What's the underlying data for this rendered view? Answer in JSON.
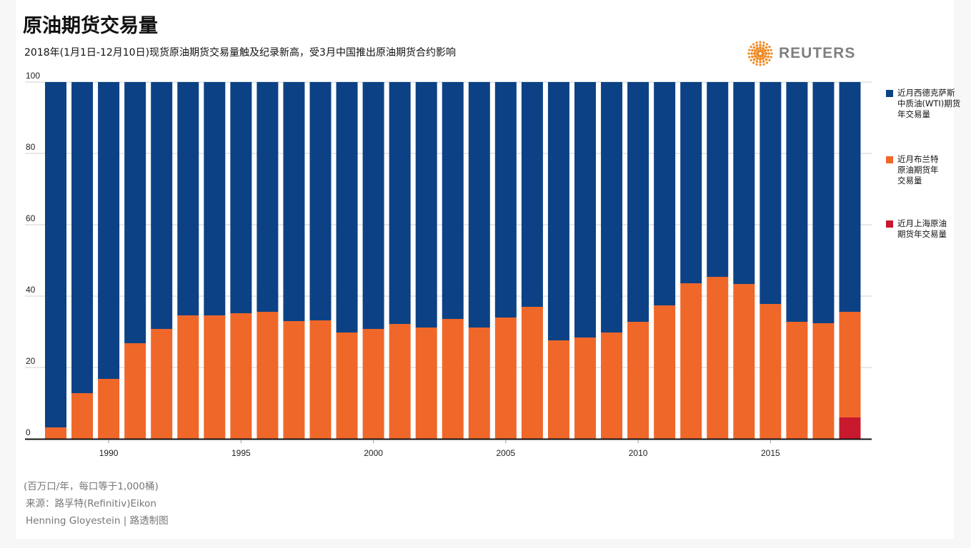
{
  "title": "原油期货交易量",
  "subtitle": "2018年(1月1日-12月10日)现货原油期货交易量触及纪录新高，受3月中国推出原油期货合约影响",
  "logo": {
    "text": "REUTERS",
    "color": "#f08a24"
  },
  "footer": {
    "unit": "(百万口/年，每口等于1,000桶)",
    "source": "来源：路孚特(Refinitiv)Eikon",
    "credit": "Henning Gloyestein | 路透制图"
  },
  "chart_data": {
    "type": "bar",
    "stacked": true,
    "title": "原油期货交易量",
    "xlabel": "",
    "ylabel": "",
    "ylim": [
      0,
      100
    ],
    "yticks": [
      0,
      20,
      40,
      60,
      80,
      100
    ],
    "xticks": [
      1990,
      1995,
      2000,
      2005,
      2010,
      2015
    ],
    "grid": true,
    "legend_position": "right",
    "categories": [
      1988,
      1989,
      1990,
      1991,
      1992,
      1993,
      1994,
      1995,
      1996,
      1997,
      1998,
      1999,
      2000,
      2001,
      2002,
      2003,
      2004,
      2005,
      2006,
      2007,
      2008,
      2009,
      2010,
      2011,
      2012,
      2013,
      2014,
      2015,
      2016,
      2017,
      2018
    ],
    "series": [
      {
        "name": "近月上海原油期货年交易量",
        "color": "#c8192e",
        "values": [
          0,
          0,
          0,
          0,
          0,
          0,
          0,
          0,
          0,
          0,
          0,
          0,
          0,
          0,
          0,
          0,
          0,
          0,
          0,
          0,
          0,
          0,
          0,
          0,
          0,
          0,
          0,
          0,
          0,
          0,
          6
        ]
      },
      {
        "name": "近月布兰特原油期货年交易量",
        "color": "#f0672a",
        "values": [
          3.2,
          12.8,
          16.8,
          26.8,
          30.8,
          34.6,
          34.6,
          35.2,
          35.6,
          33,
          33.2,
          29.8,
          30.8,
          32.2,
          31.2,
          33.6,
          31.2,
          34,
          37,
          27.6,
          28.4,
          29.8,
          32.8,
          37.4,
          43.6,
          45.4,
          43.4,
          37.8,
          32.8,
          32.4,
          29.6
        ]
      },
      {
        "name": "近月西德克萨斯中质油(WTI)期货年交易量",
        "color": "#0c4285",
        "values": [
          96.8,
          87.2,
          83.2,
          73.2,
          69.2,
          65.4,
          65.4,
          64.8,
          64.4,
          67,
          66.8,
          70.2,
          69.2,
          67.8,
          68.8,
          66.4,
          68.8,
          66,
          63,
          72.4,
          71.6,
          70.2,
          67.2,
          62.6,
          56.4,
          54.6,
          56.6,
          62.2,
          67.2,
          67.6,
          64.4
        ]
      }
    ],
    "legend": [
      {
        "lines": [
          "近月西德克萨斯中质油",
          "斯中质油(WTI)"
        ],
        "label": "近月西德克萨斯中质油(WTI)期货年交易量",
        "color": "#0c4285"
      },
      {
        "label": "近月布兰特原油期货年交易量",
        "color": "#f0672a"
      },
      {
        "label": "近月上海原油期货年交易量",
        "color": "#c8192e"
      }
    ]
  }
}
